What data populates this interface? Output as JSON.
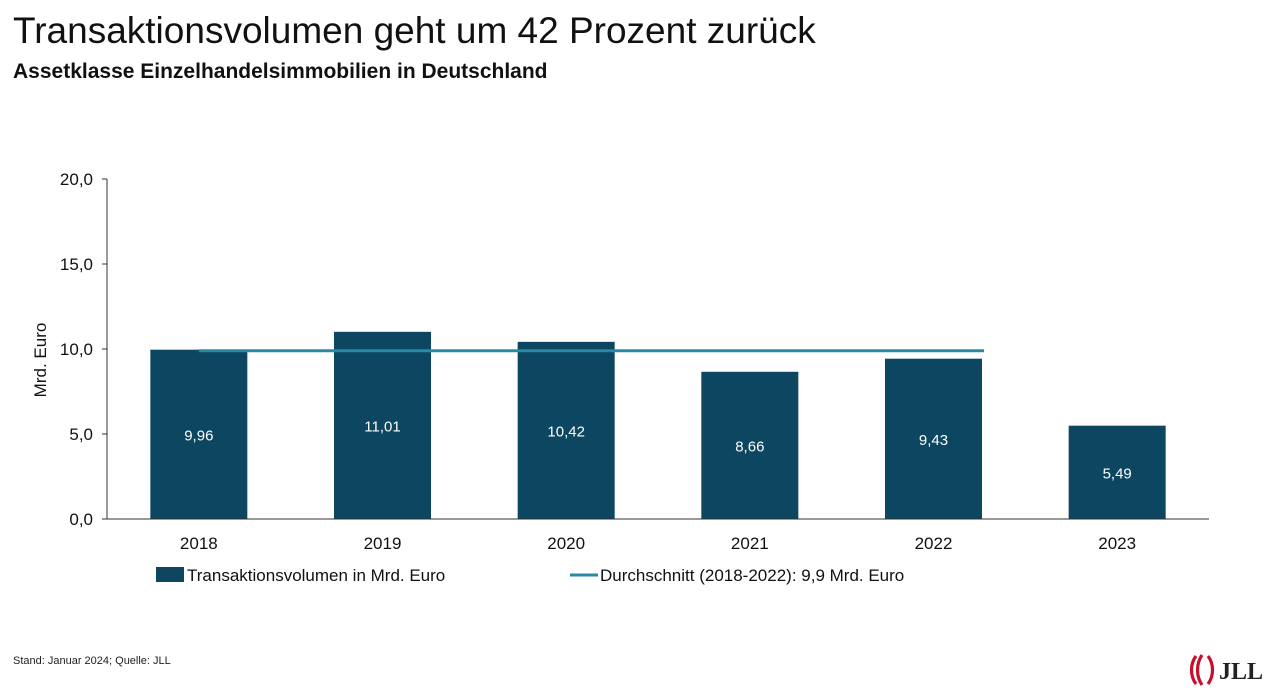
{
  "title": "Transaktionsvolumen geht um 42 Prozent zurück",
  "subtitle": "Assetklasse Einzelhandelsimmobilien in Deutschland",
  "footer": "Stand: Januar 2024; Quelle: JLL",
  "logo": {
    "text": "JLL"
  },
  "colors": {
    "bar": "#0c4660",
    "line": "#2b8aa3",
    "axis": "#333333",
    "bar_label": "#ffffff"
  },
  "chart_data": {
    "type": "bar",
    "categories": [
      "2018",
      "2019",
      "2020",
      "2021",
      "2022",
      "2023"
    ],
    "series": [
      {
        "name": "Transaktionsvolumen in Mrd. Euro",
        "type": "bar",
        "values": [
          9.96,
          11.01,
          10.42,
          8.66,
          9.43,
          5.49
        ],
        "labels": [
          "9,96",
          "11,01",
          "10,42",
          "8,66",
          "9,43",
          "5,49"
        ]
      },
      {
        "name": "Durchschnitt (2018-2022): 9,9 Mrd. Euro",
        "type": "line",
        "value": 9.9,
        "span": [
          "2018",
          "2022"
        ]
      }
    ],
    "ylabel": "Mrd. Euro",
    "xlabel": "",
    "ylim": [
      0,
      20
    ],
    "yticks": [
      0,
      5,
      10,
      15,
      20
    ],
    "ytick_labels": [
      "0,0",
      "5,0",
      "10,0",
      "15,0",
      "20,0"
    ],
    "grid": false,
    "legend": "bottom"
  }
}
